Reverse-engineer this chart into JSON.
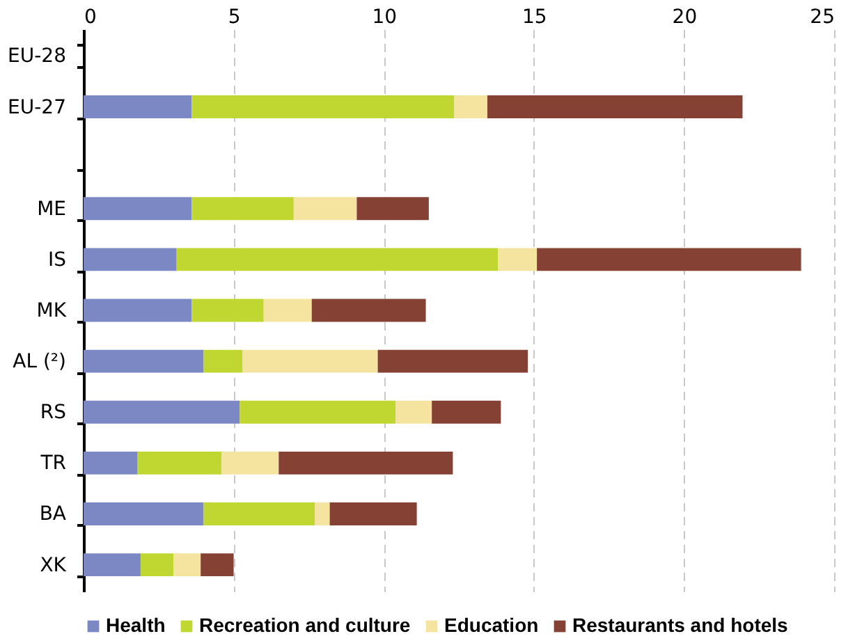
{
  "chart_data": {
    "type": "bar",
    "orientation": "horizontal",
    "stacked": true,
    "categories": [
      "EU-28",
      "EU-27",
      null,
      "ME",
      "IS",
      "MK",
      "AL (²)",
      "RS",
      "TR",
      "BA",
      "XK"
    ],
    "series": [
      {
        "name": "Health",
        "color": "#7b88c4",
        "values": [
          null,
          3.6,
          null,
          3.6,
          3.1,
          3.6,
          4.0,
          5.2,
          1.8,
          4.0,
          1.9
        ]
      },
      {
        "name": "Recreation and culture",
        "color": "#bfd730",
        "values": [
          null,
          8.75,
          null,
          3.4,
          10.7,
          2.4,
          1.3,
          5.2,
          2.8,
          3.7,
          1.1
        ]
      },
      {
        "name": "Education",
        "color": "#f5e4a0",
        "values": [
          null,
          1.1,
          null,
          2.1,
          1.3,
          1.6,
          4.5,
          1.2,
          1.9,
          0.5,
          0.9
        ]
      },
      {
        "name": "Restaurants and hotels",
        "color": "#864135",
        "values": [
          null,
          8.5,
          null,
          2.4,
          8.8,
          3.8,
          5.0,
          2.3,
          5.8,
          2.9,
          1.1
        ]
      }
    ],
    "xlim": [
      0,
      25
    ],
    "xticks": [
      0,
      5,
      10,
      15,
      20,
      25
    ],
    "grid": "x",
    "legend": "bottom"
  }
}
